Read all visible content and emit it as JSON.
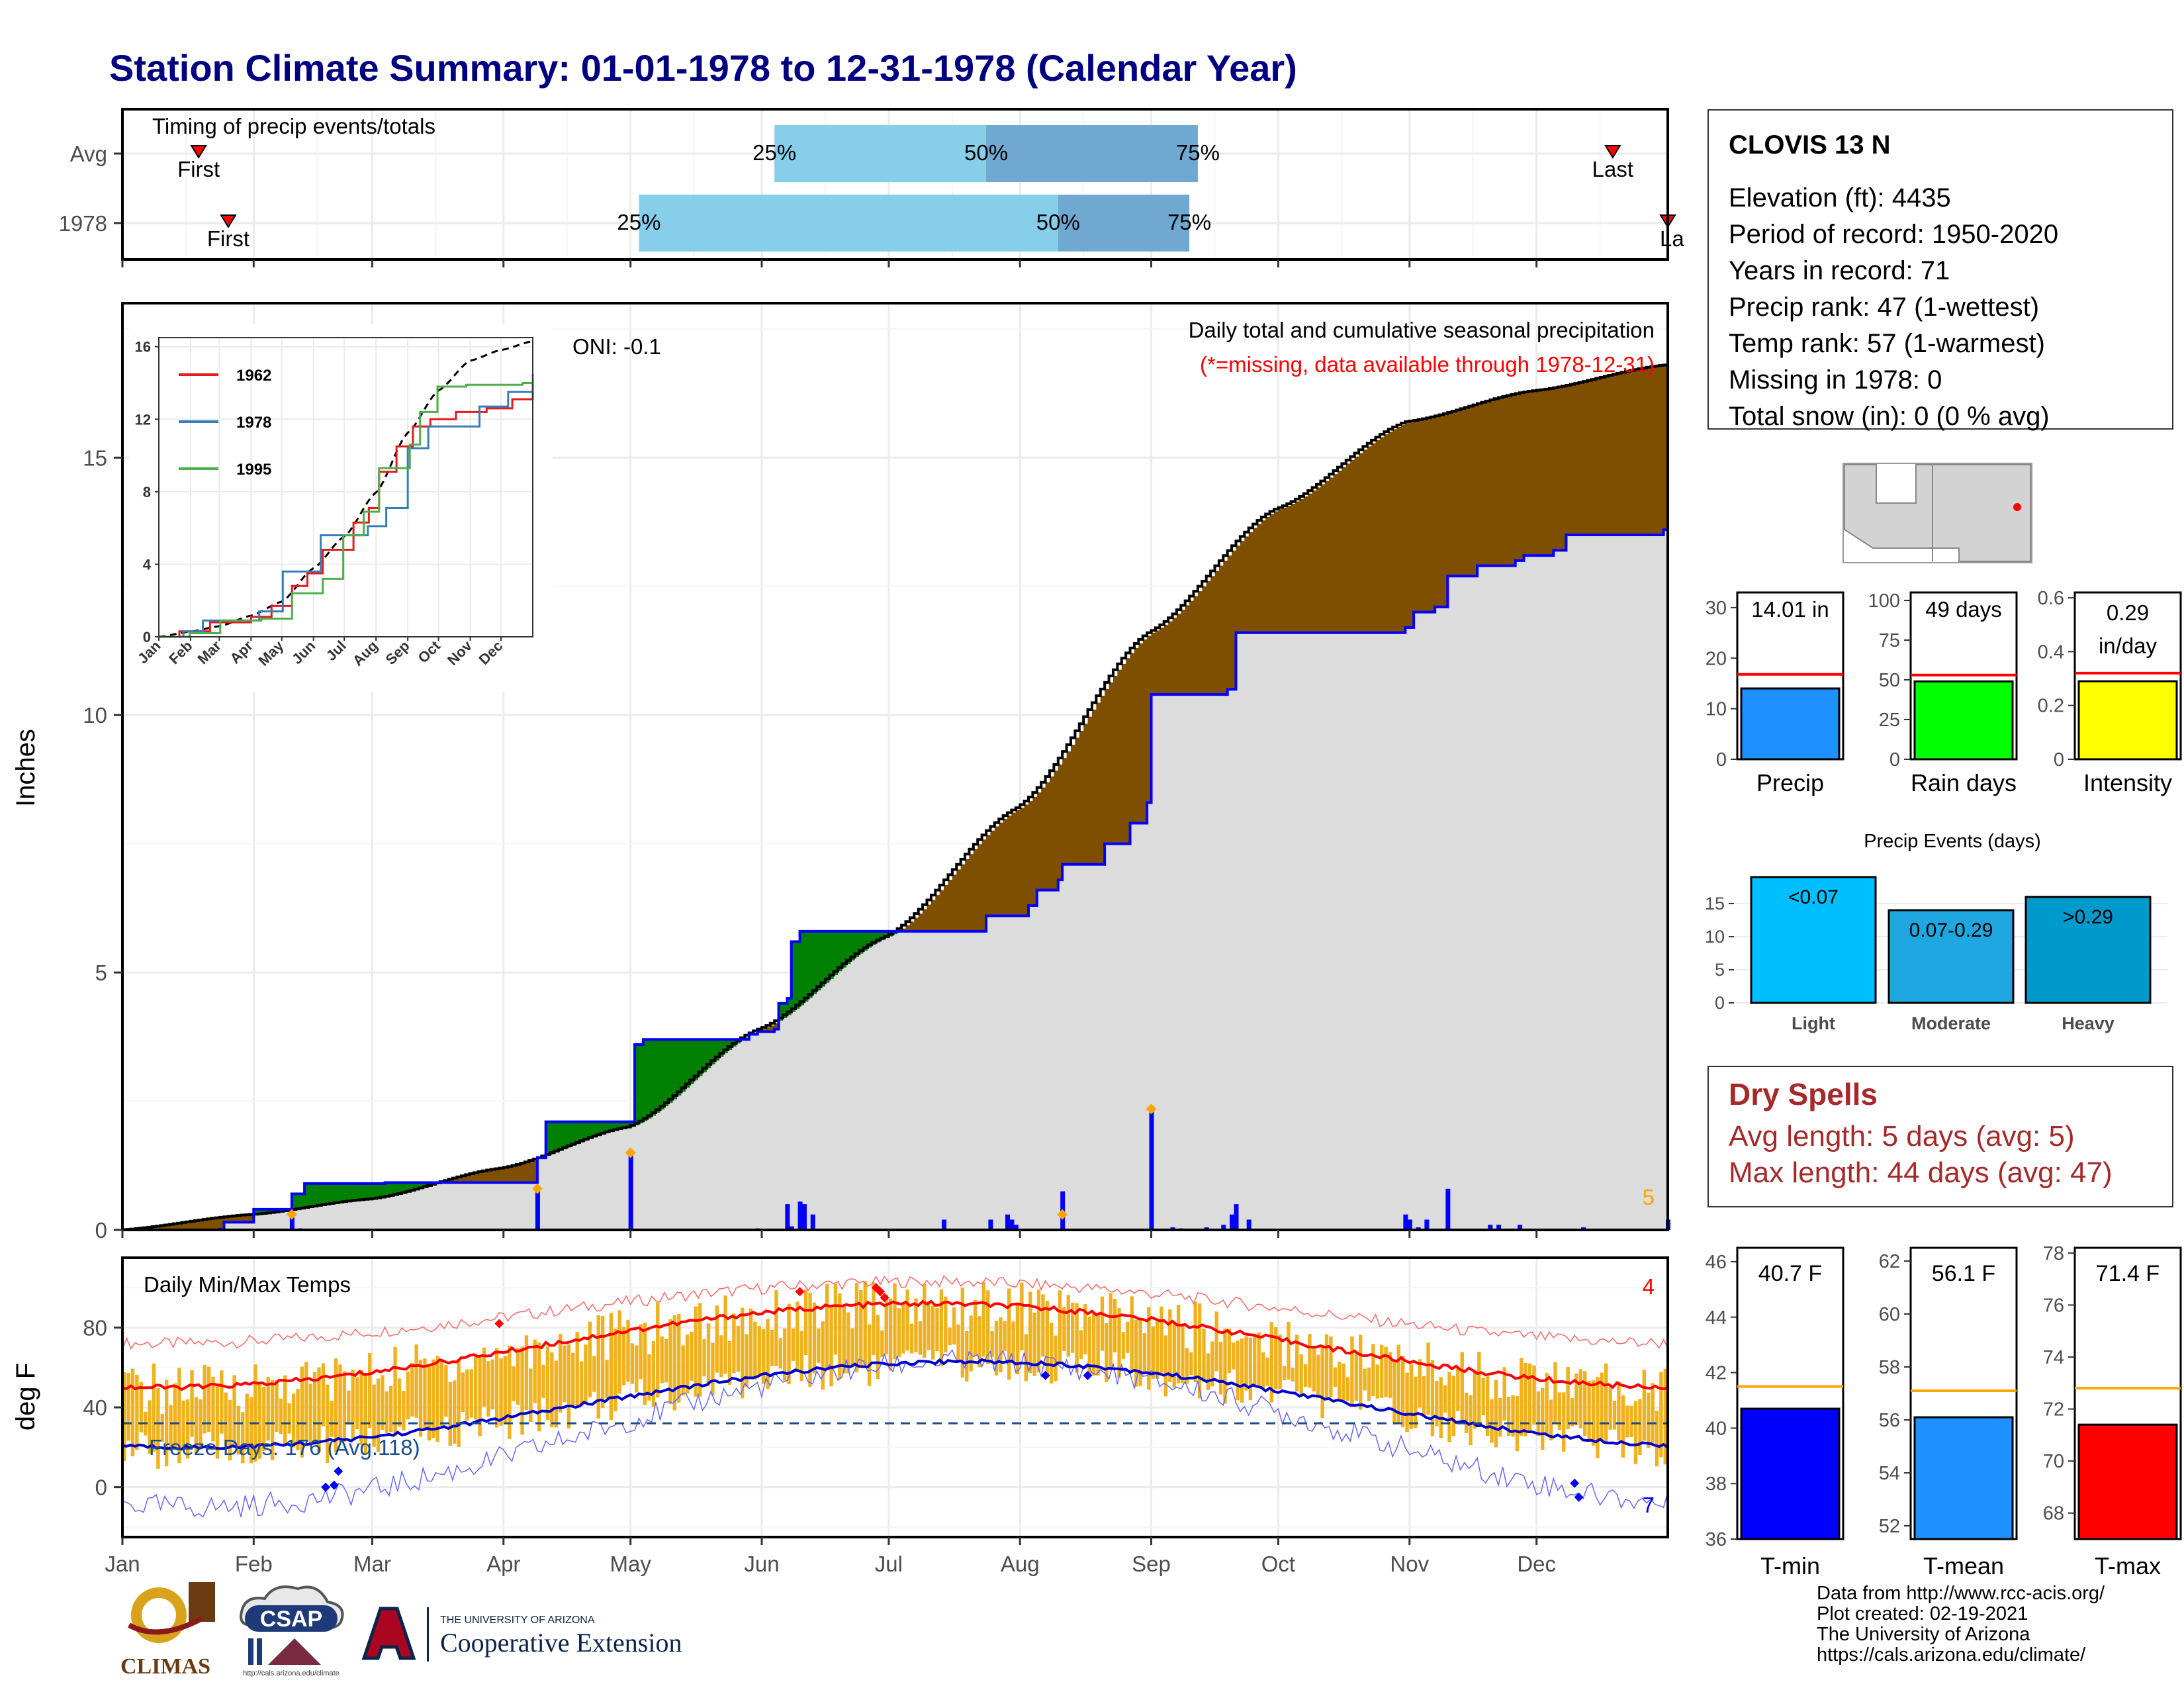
{
  "title": "Station Climate Summary: 01-01-1978 to 12-31-1978 (Calendar Year)",
  "station": {
    "name": "CLOVIS 13 N",
    "lines": [
      "Elevation (ft): 4435",
      "Period of record: 1950-2020",
      "Years in record: 71",
      "Precip rank: 47 (1-wettest)",
      "Temp rank: 57 (1-warmest)",
      "Missing in 1978: 0",
      "Total snow (in): 0 (0 % avg)"
    ]
  },
  "months": [
    "Jan",
    "Feb",
    "Mar",
    "Apr",
    "May",
    "Jun",
    "Jul",
    "Aug",
    "Sep",
    "Oct",
    "Nov",
    "Dec"
  ],
  "timing": {
    "label": "Timing of precip events/totals",
    "rows": [
      {
        "name": "Avg",
        "first_doy": 18,
        "q25_doy": 154,
        "q50_doy": 204,
        "q75_doy": 254,
        "last_doy": 352,
        "first_label": "First",
        "last_label": "Last",
        "q25_label": "25%",
        "q50_label": "50%",
        "q75_label": "75%"
      },
      {
        "name": "1978",
        "first_doy": 25,
        "q25_doy": 122,
        "q50_doy": 221,
        "q75_doy": 252,
        "last_doy": 365,
        "first_label": "First",
        "last_label": "Last",
        "q25_label": "25%",
        "q50_label": "50%",
        "q75_label": "75%"
      }
    ]
  },
  "precip_panel": {
    "ylabel": "Inches",
    "caption_1": "Daily total and cumulative seasonal precipitation",
    "caption_2": "(*=missing, data available through 1978-12-31)",
    "oni": "ONI: -0.1",
    "count_label": "5",
    "ylim": [
      0,
      18
    ],
    "yticks": [
      0,
      5,
      10,
      15
    ],
    "colors": {
      "above": "#008000",
      "below": "#7f4f00",
      "observed": "#0000ff",
      "avg": "#000000",
      "fill": "#dcdcdc"
    }
  },
  "temp_panel": {
    "ylabel": "deg F",
    "label": "Daily Min/Max Temps",
    "freeze_label": "Freeze Days: 176 (Avg.118)",
    "count_high": "4",
    "count_low": "7",
    "ylim": [
      -25,
      115
    ],
    "yticks": [
      0,
      40,
      80
    ]
  },
  "inset": {
    "legend": [
      "1962",
      "1978",
      "1995"
    ],
    "colors": [
      "#e41a1c",
      "#377eb8",
      "#4daf4a"
    ],
    "yticks": [
      0,
      4,
      8,
      12,
      16
    ],
    "months": [
      "Jan",
      "Feb",
      "Mar",
      "Apr",
      "May",
      "Jun",
      "Jul",
      "Aug",
      "Sep",
      "Oct",
      "Nov",
      "Dec"
    ]
  },
  "summary_bars": [
    {
      "name": "Precip",
      "value": 14.01,
      "avg": 16.8,
      "label": "14.01 in",
      "ymax": 33,
      "ticks": [
        0,
        10,
        20,
        30
      ],
      "color": "#1e90ff"
    },
    {
      "name": "Rain days",
      "value": 49,
      "avg": 53,
      "label": "49 days",
      "ymax": 105,
      "ticks": [
        0,
        25,
        50,
        75,
        100
      ],
      "color": "#00ff00"
    },
    {
      "name": "Intensity",
      "value": 0.29,
      "avg": 0.32,
      "label": "0.29 in/day",
      "ymax": 0.62,
      "ticks": [
        0.0,
        0.2,
        0.4,
        0.6
      ],
      "color": "#ffff00"
    }
  ],
  "precip_events": {
    "title": "Precip Events (days)",
    "categories": [
      "Light",
      "Moderate",
      "Heavy"
    ],
    "values": [
      19,
      14,
      16
    ],
    "labels": [
      "<0.07",
      "0.07-0.29",
      ">0.29"
    ],
    "ticks": [
      0,
      5,
      10,
      15
    ],
    "colors": [
      "#00bfff",
      "#1ea7e0",
      "#0099cc"
    ]
  },
  "dry_spells": {
    "title": "Dry Spells",
    "avg_line": "Avg length: 5 days (avg: 5)",
    "max_line": "Max length: 44 days (avg: 47)"
  },
  "temp_bars": [
    {
      "name": "T-min",
      "value": 40.7,
      "avg": 41.5,
      "label": "40.7 F",
      "ymin": 36,
      "ymax": 46.5,
      "ticks": [
        36,
        38,
        40,
        42,
        44,
        46
      ],
      "color": "#0000ff"
    },
    {
      "name": "T-mean",
      "value": 56.1,
      "avg": 57.1,
      "label": "56.1 F",
      "ymin": 51.5,
      "ymax": 62.5,
      "ticks": [
        52,
        54,
        56,
        58,
        60,
        62
      ],
      "color": "#1e90ff"
    },
    {
      "name": "T-max",
      "value": 71.4,
      "avg": 72.8,
      "label": "71.4 F",
      "ymin": 67,
      "ymax": 78.2,
      "ticks": [
        68,
        70,
        72,
        74,
        76,
        78
      ],
      "color": "#ff0000"
    }
  ],
  "credits": [
    "Data from http://www.rcc-acis.org/",
    "Plot created: 02-19-2021",
    "The University of Arizona",
    "https://cals.arizona.edu/climate/"
  ],
  "logos": {
    "climas": "CLIMAS",
    "csap": "CSAP",
    "csap_url": "http://cals.arizona.edu/climate",
    "ua_small": "THE UNIVERSITY OF ARIZONA",
    "ua_ext": "Cooperative Extension"
  }
}
